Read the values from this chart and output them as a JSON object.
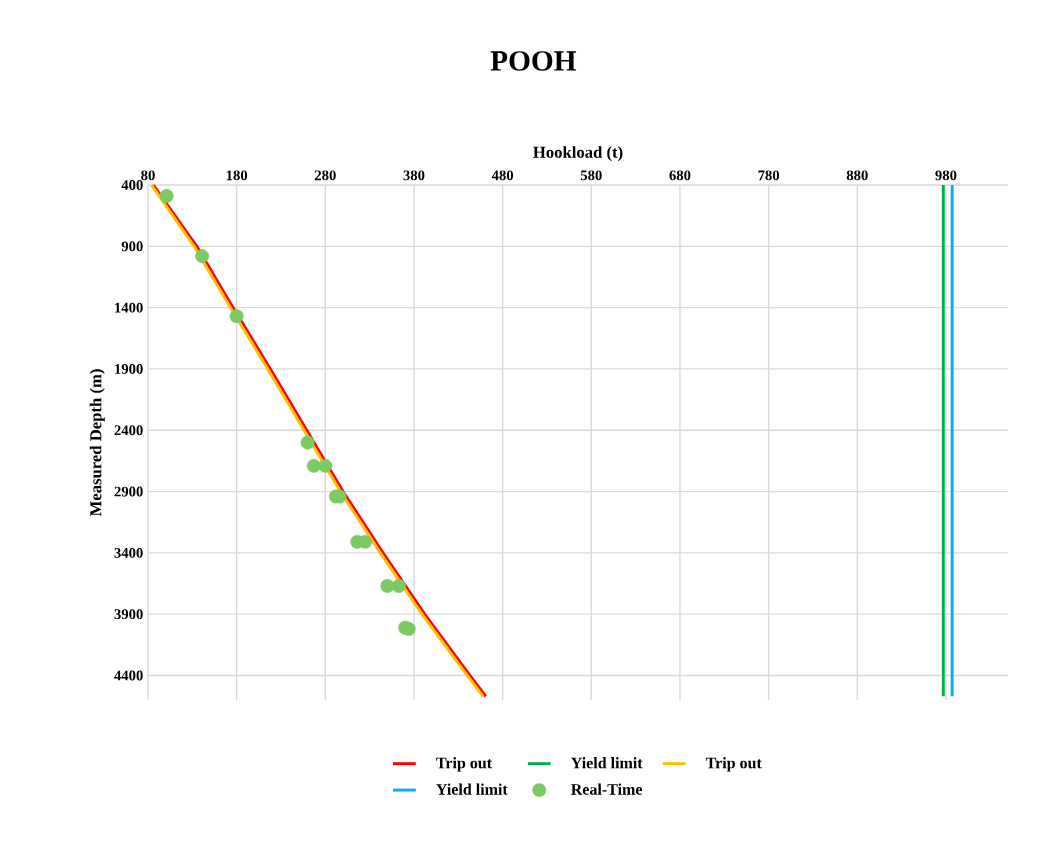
{
  "chart_data": {
    "type": "line",
    "title": "POOH",
    "xlabel": "Hookload (t)",
    "ylabel": "Measured Depth (m)",
    "xlim": [
      80,
      1050
    ],
    "xticks": [
      80,
      180,
      280,
      380,
      480,
      580,
      680,
      780,
      880,
      980
    ],
    "ylim": [
      4600,
      400
    ],
    "yticks": [
      400,
      900,
      1400,
      1900,
      2400,
      2900,
      3400,
      3900,
      4400
    ],
    "grid": true,
    "legend": "bottom",
    "series": [
      {
        "name": "Trip out",
        "color": "#ff0000",
        "x": [
          86,
          135,
          176,
          218,
          259,
          300,
          345,
          392,
          443,
          461
        ],
        "values": [
          400,
          900,
          1400,
          1900,
          2400,
          2900,
          3400,
          3900,
          4400,
          4570
        ]
      },
      {
        "name": "Yield limit",
        "color": "#00b050",
        "x": [
          977,
          977
        ],
        "values": [
          400,
          4570
        ]
      },
      {
        "name": "Trip out",
        "color": "#ffc000",
        "x": [
          84,
          132,
          173,
          215,
          256,
          297,
          342,
          389,
          440,
          458
        ],
        "values": [
          400,
          900,
          1400,
          1900,
          2400,
          2900,
          3400,
          3900,
          4400,
          4570
        ]
      },
      {
        "name": "Yield limit",
        "color": "#00b0f0",
        "x": [
          987,
          987
        ],
        "values": [
          400,
          4570
        ]
      },
      {
        "name": "Real-Time",
        "type": "scatter",
        "color": "#7cca62",
        "x": [
          101,
          141,
          180,
          260,
          267,
          280,
          292,
          296,
          316,
          325,
          350,
          363,
          370,
          374
        ],
        "values": [
          490,
          980,
          1470,
          2500,
          2690,
          2690,
          2940,
          2940,
          3310,
          3310,
          3670,
          3670,
          4010,
          4020
        ]
      }
    ]
  }
}
